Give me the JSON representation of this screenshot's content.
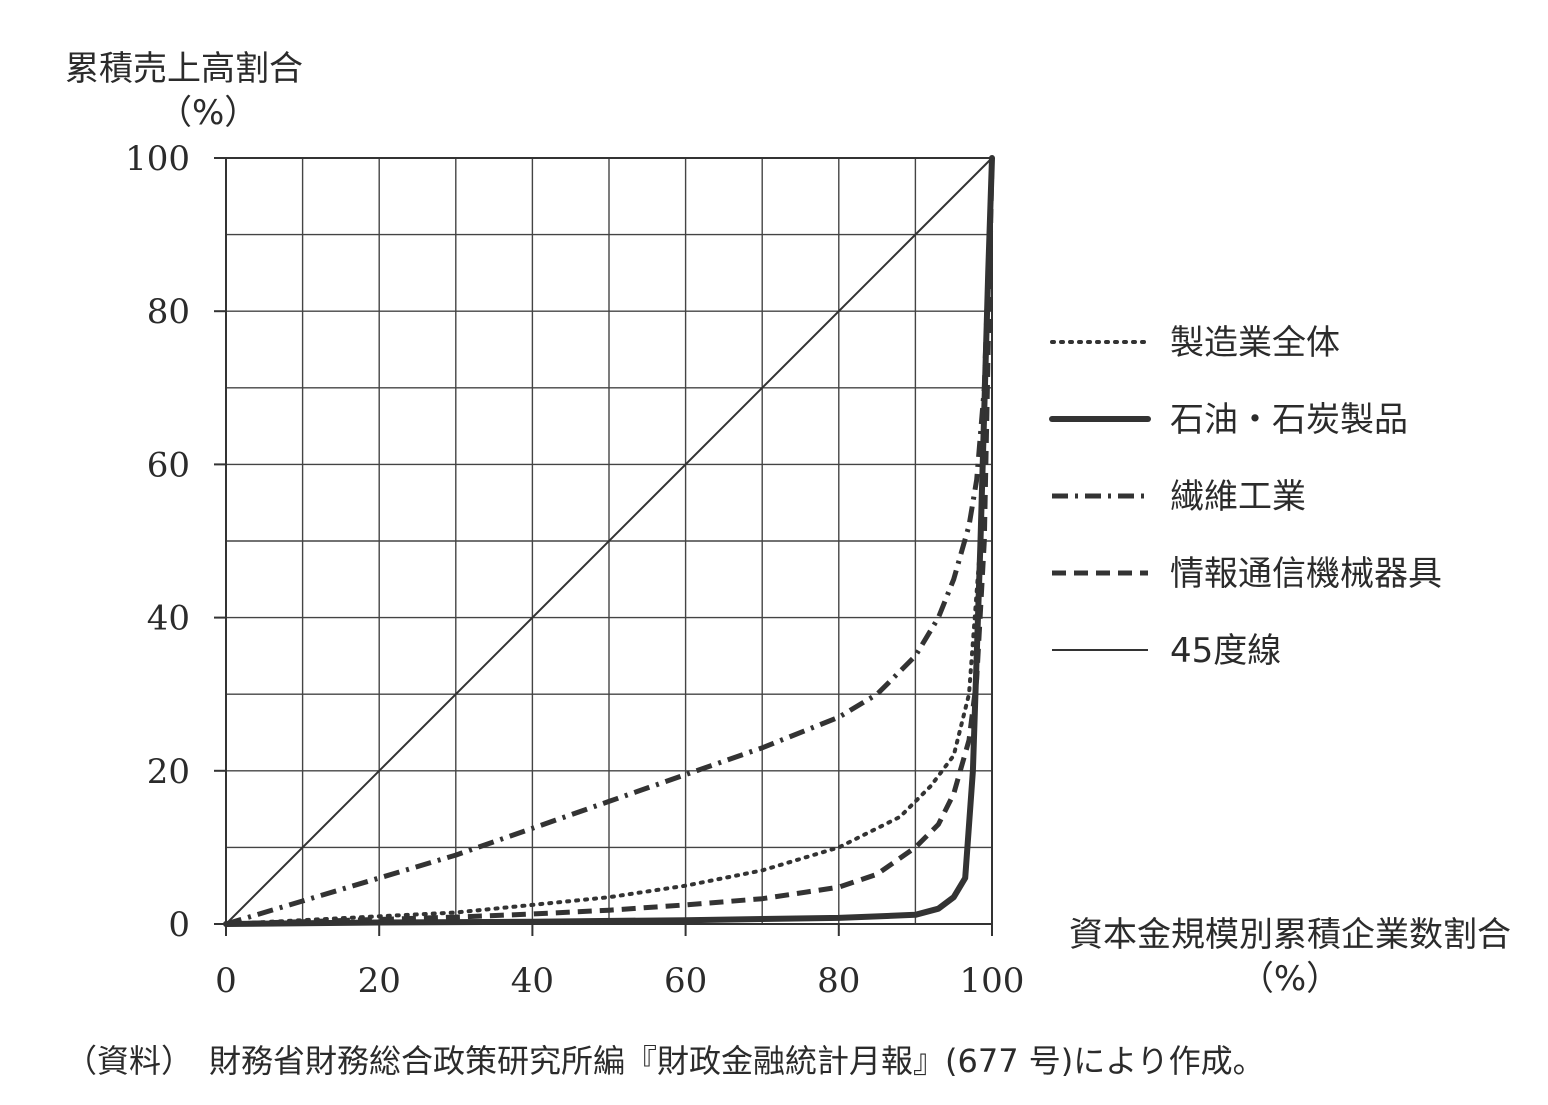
{
  "chart_data": {
    "type": "line",
    "ylabel": "累積売上高割合",
    "ylabel_unit": "（%）",
    "xlabel": "資本金規模別累積企業数割合",
    "xlabel_unit": "（%）",
    "xlim": [
      0,
      100
    ],
    "ylim": [
      0,
      100
    ],
    "x_ticks": [
      0,
      20,
      40,
      60,
      80,
      100
    ],
    "y_ticks": [
      0,
      20,
      40,
      60,
      80,
      100
    ],
    "grid": true,
    "grid_step": 10,
    "legend_position": "right",
    "series": [
      {
        "name": "製造業全体",
        "style": "dotted",
        "x": [
          0,
          10,
          20,
          30,
          40,
          50,
          60,
          70,
          80,
          88,
          92,
          95,
          97,
          98.5,
          100
        ],
        "y": [
          0,
          0.5,
          1,
          1.5,
          2.5,
          3.5,
          5,
          7,
          10,
          14,
          18,
          22,
          30,
          50,
          100
        ]
      },
      {
        "name": "石油・石炭製品",
        "style": "solid-thick",
        "x": [
          0,
          20,
          40,
          60,
          80,
          90,
          93,
          95,
          96.5,
          97.5,
          98.5,
          99.5,
          100
        ],
        "y": [
          0,
          0.2,
          0.3,
          0.5,
          0.8,
          1.2,
          2,
          3.5,
          6,
          20,
          50,
          85,
          100
        ]
      },
      {
        "name": "繊維工業",
        "style": "dash-dot",
        "x": [
          0,
          10,
          20,
          30,
          40,
          50,
          60,
          70,
          80,
          85,
          90,
          93,
          95,
          97,
          98,
          99,
          100
        ],
        "y": [
          0,
          3,
          6,
          9,
          12.5,
          16,
          19.5,
          23,
          27,
          30,
          35,
          40,
          45,
          52,
          58,
          70,
          100
        ]
      },
      {
        "name": "情報通信機械器具",
        "style": "dashed",
        "x": [
          0,
          10,
          20,
          30,
          40,
          50,
          60,
          70,
          80,
          85,
          90,
          93,
          95,
          97,
          98,
          99,
          100
        ],
        "y": [
          0,
          0.3,
          0.6,
          0.9,
          1.3,
          1.8,
          2.5,
          3.3,
          4.8,
          6.5,
          10,
          13,
          17,
          24,
          32,
          50,
          100
        ]
      },
      {
        "name": "45度線",
        "style": "solid-thin",
        "x": [
          0,
          100
        ],
        "y": [
          0,
          100
        ]
      }
    ]
  },
  "source_note": "（資料）　財務省財務総合政策研究所編『財政金融統計月報』(677 号)により作成。"
}
